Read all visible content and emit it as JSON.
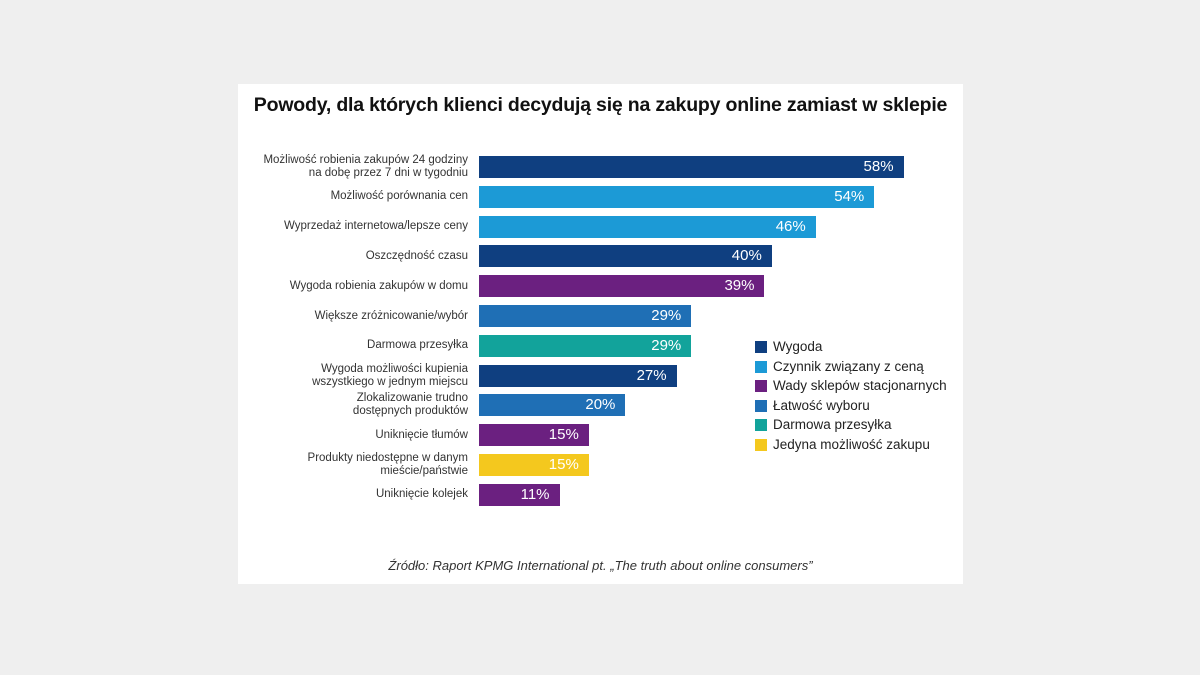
{
  "chart_data": {
    "type": "bar",
    "orientation": "horizontal",
    "title": "Powody, dla których klienci decydują się na zakupy online zamiast w sklepie",
    "source": "Źródło: Raport KPMG International pt. „The truth about online consumers”",
    "xlim": [
      0,
      70
    ],
    "grid": false,
    "legend_position": "right",
    "bars": [
      {
        "label": "Możliwość robienia zakupów 24 godziny\nna dobę przez 7 dni w tygodniu",
        "value": 58,
        "value_label": "58%",
        "group": 0
      },
      {
        "label": "Możliwość porównania cen",
        "value": 54,
        "value_label": "54%",
        "group": 1
      },
      {
        "label": "Wyprzedaż internetowa/lepsze ceny",
        "value": 46,
        "value_label": "46%",
        "group": 1
      },
      {
        "label": "Oszczędność czasu",
        "value": 40,
        "value_label": "40%",
        "group": 0
      },
      {
        "label": "Wygoda robienia zakupów w domu",
        "value": 39,
        "value_label": "39%",
        "group": 2
      },
      {
        "label": "Większe zróżnicowanie/wybór",
        "value": 29,
        "value_label": "29%",
        "group": 3
      },
      {
        "label": "Darmowa przesyłka",
        "value": 29,
        "value_label": "29%",
        "group": 4
      },
      {
        "label": "Wygoda możliwości kupienia\nwszystkiego w jednym miejscu",
        "value": 27,
        "value_label": "27%",
        "group": 0
      },
      {
        "label": "Zlokalizowanie trudno\ndostępnych produktów",
        "value": 20,
        "value_label": "20%",
        "group": 3
      },
      {
        "label": "Uniknięcie tłumów",
        "value": 15,
        "value_label": "15%",
        "group": 2
      },
      {
        "label": "Produkty niedostępne w danym\nmieście/państwie",
        "value": 15,
        "value_label": "15%",
        "group": 5
      },
      {
        "label": "Uniknięcie kolejek",
        "value": 11,
        "value_label": "11%",
        "group": 2
      }
    ],
    "legend": [
      {
        "name": "Wygoda",
        "color": "#0f3f80"
      },
      {
        "name": "Czynnik związany z ceną",
        "color": "#1c9ad6"
      },
      {
        "name": "Wady sklepów stacjonarnych",
        "color": "#6b2080"
      },
      {
        "name": "Łatwość wyboru",
        "color": "#1f6fb5"
      },
      {
        "name": "Darmowa przesyłka",
        "color": "#12a39b"
      },
      {
        "name": "Jedyna możliwość zakupu",
        "color": "#f4c81e"
      }
    ]
  }
}
